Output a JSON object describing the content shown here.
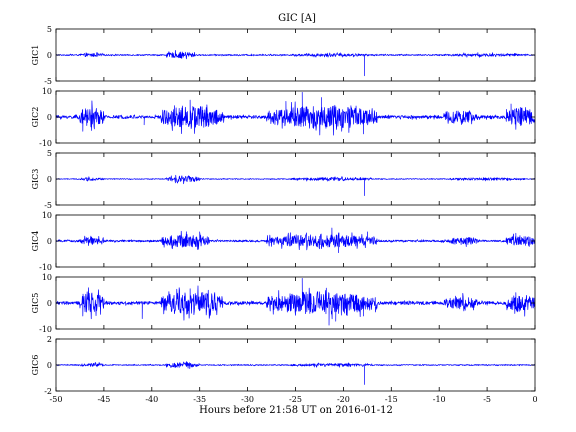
{
  "chart_data": {
    "type": "line",
    "title": "GIC [A]",
    "xlabel": "Hours before  21:58 UT on 2016-01-12",
    "xlim": [
      -50,
      0
    ],
    "x_ticks": [
      -50,
      -45,
      -40,
      -35,
      -30,
      -25,
      -20,
      -15,
      -10,
      -5,
      0
    ],
    "grid": false,
    "line_color": "#0000ff",
    "panels": [
      {
        "ylabel": "GIC1",
        "ylim": [
          -5,
          5
        ],
        "y_ticks": [
          -5,
          0,
          5
        ],
        "baseline": 0,
        "noise": 0.12,
        "bursts": [
          {
            "x": [
              -47.5,
              -45.0
            ],
            "amp": 0.35
          },
          {
            "x": [
              -38.5,
              -35.5
            ],
            "amp": 0.6
          },
          {
            "x": [
              -25.5,
              -17.0
            ],
            "amp": 0.3
          },
          {
            "x": [
              -9.5,
              -1.0
            ],
            "amp": 0.3
          }
        ],
        "spikes": [
          {
            "x": -17.8,
            "y": -4.0
          }
        ]
      },
      {
        "ylabel": "GIC2",
        "ylim": [
          -10,
          10
        ],
        "y_ticks": [
          -10,
          0,
          10
        ],
        "baseline": 0,
        "noise": 0.6,
        "bursts": [
          {
            "x": [
              -47.5,
              -45.0
            ],
            "amp": 4.0
          },
          {
            "x": [
              -39.0,
              -32.5
            ],
            "amp": 4.5
          },
          {
            "x": [
              -28.0,
              -16.5
            ],
            "amp": 4.5
          },
          {
            "x": [
              -9.5,
              -6.0
            ],
            "amp": 2.5
          },
          {
            "x": [
              -3.0,
              0.0
            ],
            "amp": 3.5
          }
        ],
        "spikes": [
          {
            "x": -47.2,
            "y": -5.5
          },
          {
            "x": -40.8,
            "y": -3.0
          },
          {
            "x": -36.0,
            "y": 6.5
          },
          {
            "x": -26.0,
            "y": 6.0
          },
          {
            "x": -24.3,
            "y": 9.5
          },
          {
            "x": -22.3,
            "y": 7.5
          },
          {
            "x": -17.9,
            "y": -6.5
          },
          {
            "x": -2.5,
            "y": 5.0
          }
        ]
      },
      {
        "ylabel": "GIC3",
        "ylim": [
          -5,
          5
        ],
        "y_ticks": [
          -5,
          0,
          5
        ],
        "baseline": 0,
        "noise": 0.08,
        "bursts": [
          {
            "x": [
              -47.5,
              -45.0
            ],
            "amp": 0.3
          },
          {
            "x": [
              -38.5,
              -35.0
            ],
            "amp": 0.6
          },
          {
            "x": [
              -25.5,
              -17.0
            ],
            "amp": 0.3
          },
          {
            "x": [
              -9.0,
              -1.0
            ],
            "amp": 0.25
          }
        ],
        "spikes": [
          {
            "x": -17.8,
            "y": -3.2
          }
        ]
      },
      {
        "ylabel": "GIC4",
        "ylim": [
          -10,
          10
        ],
        "y_ticks": [
          -10,
          0,
          10
        ],
        "baseline": 0,
        "noise": 0.35,
        "bursts": [
          {
            "x": [
              -47.5,
              -45.0
            ],
            "amp": 1.5
          },
          {
            "x": [
              -39.0,
              -34.0
            ],
            "amp": 2.5
          },
          {
            "x": [
              -28.0,
              -16.5
            ],
            "amp": 2.5
          },
          {
            "x": [
              -9.0,
              -6.0
            ],
            "amp": 1.5
          },
          {
            "x": [
              -3.0,
              0.0
            ],
            "amp": 2.0
          }
        ],
        "spikes": [
          {
            "x": -35.0,
            "y": 3.5
          },
          {
            "x": -21.2,
            "y": 5.0
          },
          {
            "x": -20.5,
            "y": -4.5
          },
          {
            "x": -17.5,
            "y": 3.5
          },
          {
            "x": -2.0,
            "y": 3.0
          }
        ]
      },
      {
        "ylabel": "GIC5",
        "ylim": [
          -10,
          10
        ],
        "y_ticks": [
          -10,
          0,
          10
        ],
        "baseline": 0,
        "noise": 0.6,
        "bursts": [
          {
            "x": [
              -47.5,
              -45.0
            ],
            "amp": 4.0
          },
          {
            "x": [
              -39.0,
              -32.5
            ],
            "amp": 4.5
          },
          {
            "x": [
              -28.0,
              -16.5
            ],
            "amp": 4.5
          },
          {
            "x": [
              -9.5,
              -6.0
            ],
            "amp": 2.5
          },
          {
            "x": [
              -3.0,
              0.0
            ],
            "amp": 3.5
          }
        ],
        "spikes": [
          {
            "x": -47.2,
            "y": -5.0
          },
          {
            "x": -41.0,
            "y": -6.0
          },
          {
            "x": -36.0,
            "y": 5.5
          },
          {
            "x": -24.3,
            "y": 9.5
          },
          {
            "x": -21.5,
            "y": -8.5
          },
          {
            "x": -20.8,
            "y": -7.0
          },
          {
            "x": -17.9,
            "y": -5.0
          },
          {
            "x": -2.0,
            "y": 4.0
          }
        ]
      },
      {
        "ylabel": "GIC6",
        "ylim": [
          -2,
          2
        ],
        "y_ticks": [
          -2,
          0,
          2
        ],
        "baseline": 0,
        "noise": 0.04,
        "bursts": [
          {
            "x": [
              -47.5,
              -45.0
            ],
            "amp": 0.15
          },
          {
            "x": [
              -38.5,
              -35.0
            ],
            "amp": 0.2
          },
          {
            "x": [
              -25.5,
              -17.0
            ],
            "amp": 0.12
          }
        ],
        "spikes": [
          {
            "x": -17.8,
            "y": -1.5
          }
        ]
      }
    ]
  }
}
